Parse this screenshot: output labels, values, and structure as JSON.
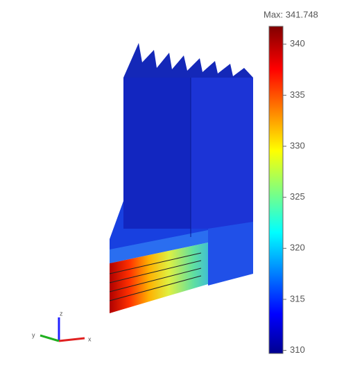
{
  "colorbar": {
    "max_label": "Max: 341.748",
    "lim": [
      309.7,
      341.748
    ],
    "ticks": [
      310,
      315,
      320,
      325,
      330,
      335,
      340
    ]
  },
  "triad": {
    "z": "z",
    "y": "y",
    "x": "x"
  }
}
